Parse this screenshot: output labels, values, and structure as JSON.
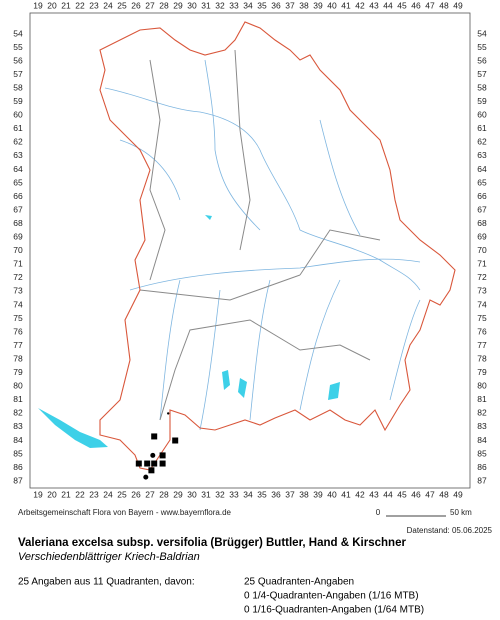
{
  "map": {
    "columns": [
      19,
      20,
      21,
      22,
      23,
      24,
      25,
      26,
      27,
      28,
      29,
      30,
      31,
      32,
      33,
      34,
      35,
      36,
      37,
      38,
      39,
      40,
      41,
      42,
      43,
      44,
      45,
      46,
      47,
      48,
      49
    ],
    "rows": [
      54,
      55,
      56,
      57,
      58,
      59,
      60,
      61,
      62,
      63,
      64,
      65,
      66,
      67,
      68,
      69,
      70,
      71,
      72,
      73,
      74,
      75,
      76,
      77,
      78,
      79,
      80,
      81,
      82,
      83,
      84,
      85,
      86,
      87
    ],
    "markers": [
      {
        "shape": "square",
        "x": 27.3,
        "y": 83.7
      },
      {
        "shape": "square",
        "x": 28.8,
        "y": 84.0
      },
      {
        "shape": "circle",
        "x": 27.2,
        "y": 85.1
      },
      {
        "shape": "square",
        "x": 27.9,
        "y": 85.1
      },
      {
        "shape": "square",
        "x": 26.2,
        "y": 85.7
      },
      {
        "shape": "square",
        "x": 26.8,
        "y": 85.7
      },
      {
        "shape": "square",
        "x": 27.3,
        "y": 85.7
      },
      {
        "shape": "square",
        "x": 27.9,
        "y": 85.7
      },
      {
        "shape": "square",
        "x": 27.1,
        "y": 86.2
      },
      {
        "shape": "circle",
        "x": 26.7,
        "y": 86.7
      },
      {
        "shape": "dot",
        "x": 28.3,
        "y": 82.0
      }
    ]
  },
  "footer": {
    "credit": "Arbeitsgemeinschaft Flora von Bayern - www.bayernflora.de",
    "scale_start": "0",
    "scale_end": "50 km",
    "date": "Datenstand: 05.06.2025",
    "title": "Valeriana excelsa subsp. versifolia (Brügger) Buttler, Hand & Kirschner",
    "subtitle": "Verschiedenblättriger Kriech-Baldrian",
    "summary": "25 Angaben aus 11 Quadranten, davon:",
    "counts": [
      "25 Quadranten-Angaben",
      "0 1/4-Quadranten-Angaben (1/16 MTB)",
      "0 1/16-Quadranten-Angaben (1/64 MTB)"
    ]
  }
}
